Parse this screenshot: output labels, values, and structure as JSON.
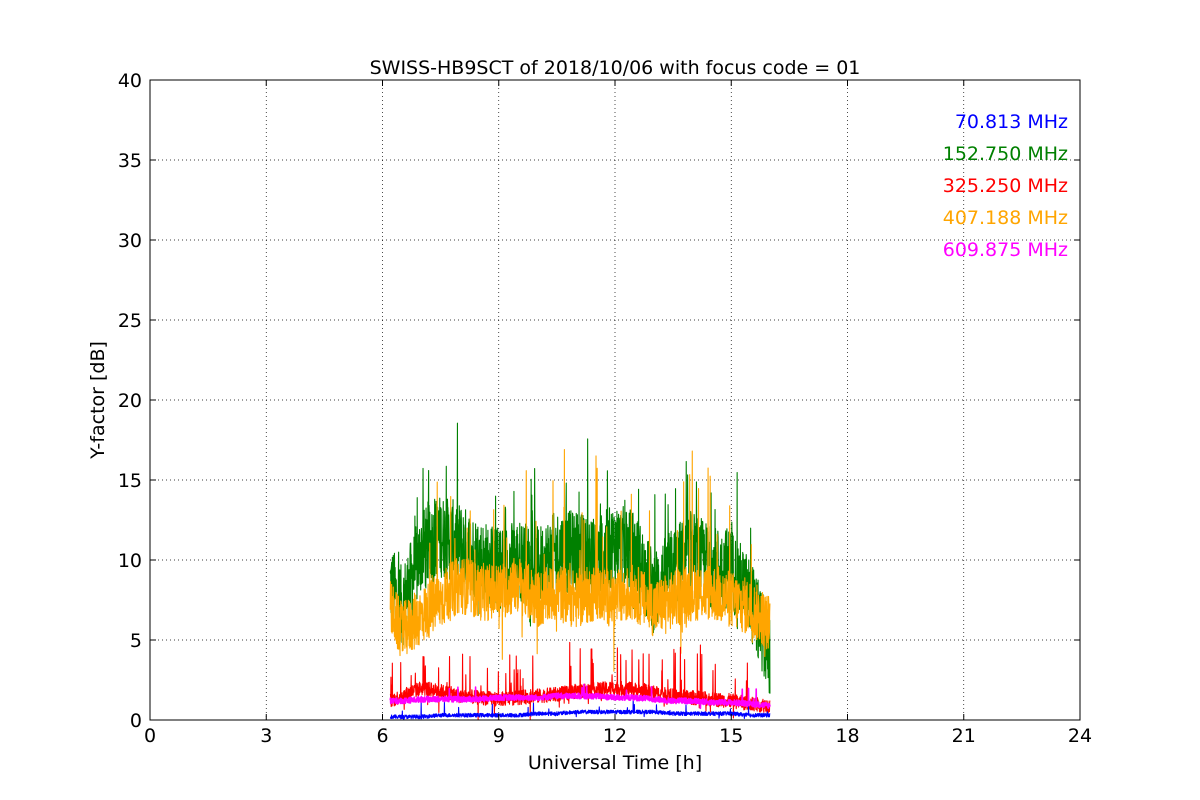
{
  "chart_data": {
    "type": "line",
    "title": "SWISS-HB9SCT of 2018/10/06 with focus code = 01",
    "xlabel": "Universal Time [h]",
    "ylabel": "Y-factor [dB]",
    "xlim": [
      0,
      24
    ],
    "ylim": [
      0,
      40
    ],
    "xticks": [
      "0",
      "3",
      "6",
      "9",
      "12",
      "15",
      "18",
      "21",
      "24"
    ],
    "yticks": [
      "0",
      "5",
      "10",
      "15",
      "20",
      "25",
      "30",
      "35",
      "40"
    ],
    "grid": true,
    "legend_position": "top-right",
    "x_range_data": [
      6.2,
      16.0
    ],
    "series": [
      {
        "name": "70.813 MHz",
        "color": "#0000ff",
        "x": [
          6.2,
          6.5,
          7.0,
          7.5,
          8.0,
          8.5,
          9.0,
          9.5,
          10.0,
          10.5,
          11.0,
          11.5,
          12.0,
          12.5,
          13.0,
          13.5,
          14.0,
          14.5,
          15.0,
          15.5,
          16.0
        ],
        "values": [
          0.2,
          0.2,
          0.2,
          0.3,
          0.3,
          0.3,
          0.3,
          0.3,
          0.4,
          0.4,
          0.5,
          0.5,
          0.5,
          0.5,
          0.5,
          0.4,
          0.4,
          0.4,
          0.4,
          0.3,
          0.3
        ]
      },
      {
        "name": "152.750 MHz",
        "color": "#008000",
        "x": [
          6.2,
          6.5,
          7.0,
          7.5,
          8.0,
          8.5,
          9.0,
          9.5,
          10.0,
          10.5,
          11.0,
          11.5,
          12.0,
          12.5,
          13.0,
          13.5,
          14.0,
          14.5,
          15.0,
          15.5,
          16.0
        ],
        "values": [
          8.5,
          7.0,
          10.5,
          11.5,
          11.0,
          10.0,
          9.5,
          10.0,
          9.5,
          10.5,
          10.5,
          10.0,
          11.0,
          10.5,
          8.0,
          9.5,
          10.5,
          9.5,
          9.5,
          7.5,
          4.0
        ]
      },
      {
        "name": "325.250 MHz",
        "color": "#ff0000",
        "x": [
          6.2,
          6.5,
          7.0,
          7.5,
          8.0,
          8.5,
          9.0,
          9.5,
          10.0,
          10.5,
          11.0,
          11.5,
          12.0,
          12.5,
          13.0,
          13.5,
          14.0,
          14.5,
          15.0,
          15.5,
          16.0
        ],
        "values": [
          1.2,
          1.5,
          2.0,
          1.8,
          1.5,
          1.4,
          1.3,
          1.4,
          1.5,
          1.6,
          1.8,
          1.9,
          2.0,
          1.9,
          1.7,
          1.5,
          1.4,
          1.3,
          1.2,
          1.0,
          0.9
        ]
      },
      {
        "name": "407.188 MHz",
        "color": "#ffa500",
        "x": [
          6.2,
          6.5,
          7.0,
          7.5,
          8.0,
          8.5,
          9.0,
          9.5,
          10.0,
          10.5,
          11.0,
          11.5,
          12.0,
          12.5,
          13.0,
          13.5,
          14.0,
          14.5,
          15.0,
          15.5,
          16.0
        ],
        "values": [
          7.0,
          5.5,
          6.5,
          7.5,
          8.5,
          8.0,
          8.0,
          8.5,
          7.5,
          8.0,
          7.5,
          8.0,
          7.5,
          8.0,
          7.0,
          7.5,
          8.0,
          8.0,
          7.5,
          7.0,
          6.0
        ]
      },
      {
        "name": "609.875 MHz",
        "color": "#ff00ff",
        "x": [
          6.2,
          6.5,
          7.0,
          7.5,
          8.0,
          8.5,
          9.0,
          9.5,
          10.0,
          10.5,
          11.0,
          11.5,
          12.0,
          12.5,
          13.0,
          13.5,
          14.0,
          14.5,
          15.0,
          15.5,
          16.0
        ],
        "values": [
          1.2,
          1.2,
          1.3,
          1.3,
          1.3,
          1.3,
          1.4,
          1.4,
          1.4,
          1.5,
          1.5,
          1.5,
          1.4,
          1.4,
          1.3,
          1.2,
          1.2,
          1.1,
          1.1,
          1.0,
          0.9
        ]
      }
    ]
  }
}
